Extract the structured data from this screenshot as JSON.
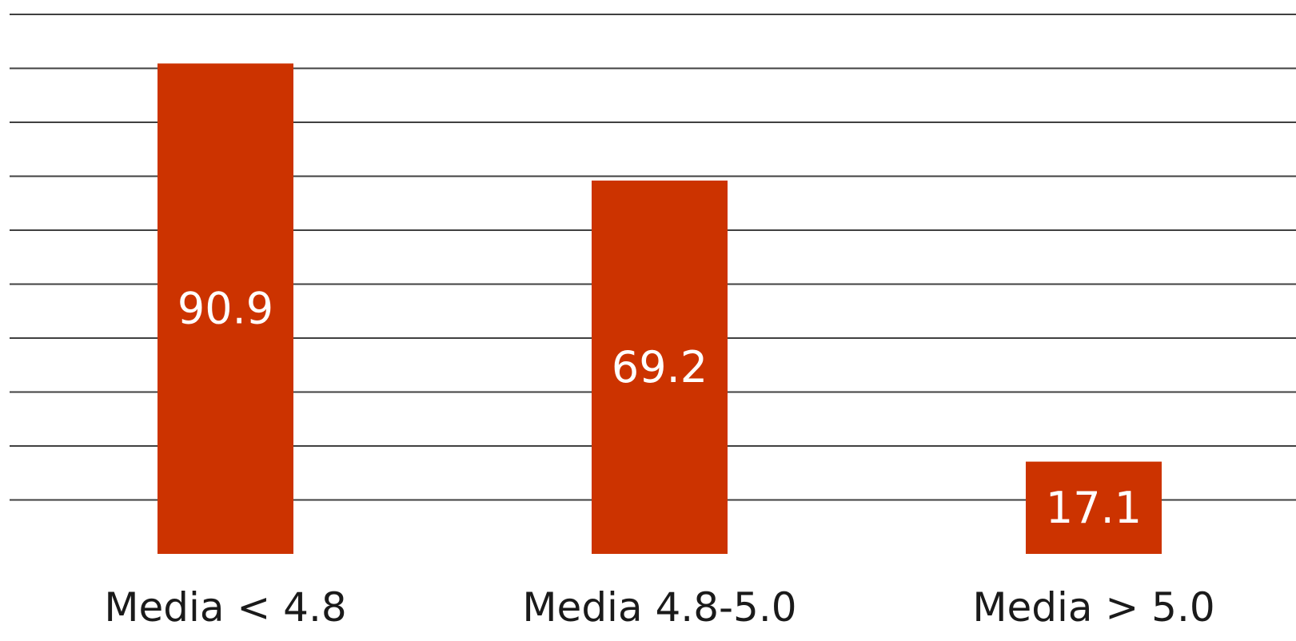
{
  "chart_data": {
    "type": "bar",
    "categories": [
      "Media < 4.8",
      "Media 4.8-5.0",
      "Media > 5.0"
    ],
    "values": [
      90.9,
      69.2,
      17.1
    ],
    "ylim": [
      0,
      100
    ],
    "grid": true,
    "bar_color": "#cc3300",
    "grid_color": "#404040",
    "value_labels": [
      "90.9",
      "69.2",
      "17.1"
    ]
  }
}
